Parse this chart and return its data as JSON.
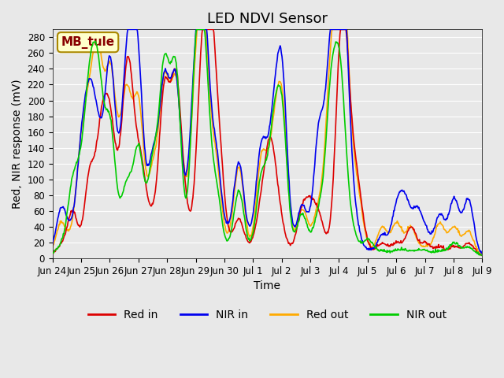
{
  "title": "LED NDVI Sensor",
  "xlabel": "Time",
  "ylabel": "Red, NIR response (mV)",
  "ylim": [
    0,
    290
  ],
  "yticks": [
    0,
    20,
    40,
    60,
    80,
    100,
    120,
    140,
    160,
    180,
    200,
    220,
    240,
    260,
    280
  ],
  "xtick_labels": [
    "Jun 24",
    "Jun 25",
    "Jun 26",
    "Jun 27",
    "Jun 28",
    "Jun 29",
    "Jun 30",
    "Jul 1",
    "Jul 2",
    "Jul 3",
    "Jul 4",
    "Jul 5",
    "Jul 6",
    "Jul 7",
    "Jul 8",
    "Jul 9"
  ],
  "colors": {
    "red_in": "#dd0000",
    "nir_in": "#0000ee",
    "red_out": "#ffaa00",
    "nir_out": "#00cc00"
  },
  "line_width": 1.2,
  "background_color": "#e8e8e8",
  "plot_bg_color": "#e8e8e8",
  "annotation_text": "MB_tule",
  "annotation_bg": "#ffffcc",
  "annotation_border": "#aa8800",
  "annotation_text_color": "#880000",
  "title_fontsize": 13,
  "axis_fontsize": 10,
  "tick_fontsize": 8.5,
  "legend_fontsize": 10
}
